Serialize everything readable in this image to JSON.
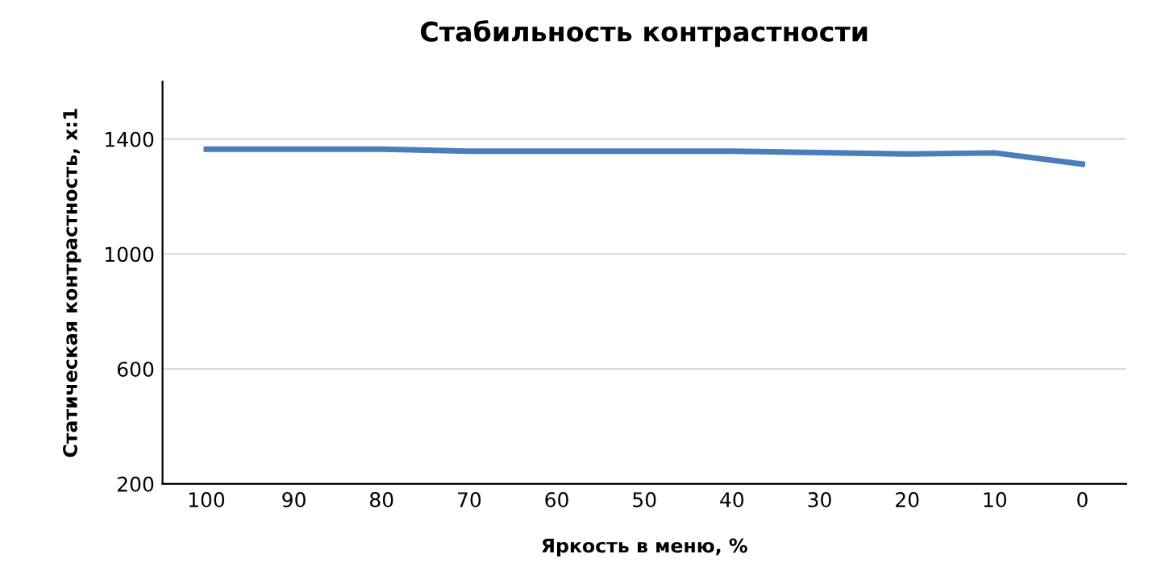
{
  "chart_data": {
    "type": "line",
    "title": "Стабильность контрастности",
    "xlabel": "Яркость в меню, %",
    "ylabel": "Статическая контрастность, x:1",
    "categories": [
      "100",
      "90",
      "80",
      "70",
      "60",
      "50",
      "40",
      "30",
      "20",
      "10",
      "0"
    ],
    "series": [
      {
        "color": "#4a7ebb",
        "values": [
          1365,
          1365,
          1365,
          1358,
          1358,
          1358,
          1358,
          1353,
          1348,
          1352,
          1313
        ]
      }
    ],
    "ylim": [
      200,
      1600
    ],
    "yticks": [
      200,
      600,
      1000,
      1400
    ],
    "grid": "y",
    "marker": "none",
    "line_style": "solid"
  }
}
